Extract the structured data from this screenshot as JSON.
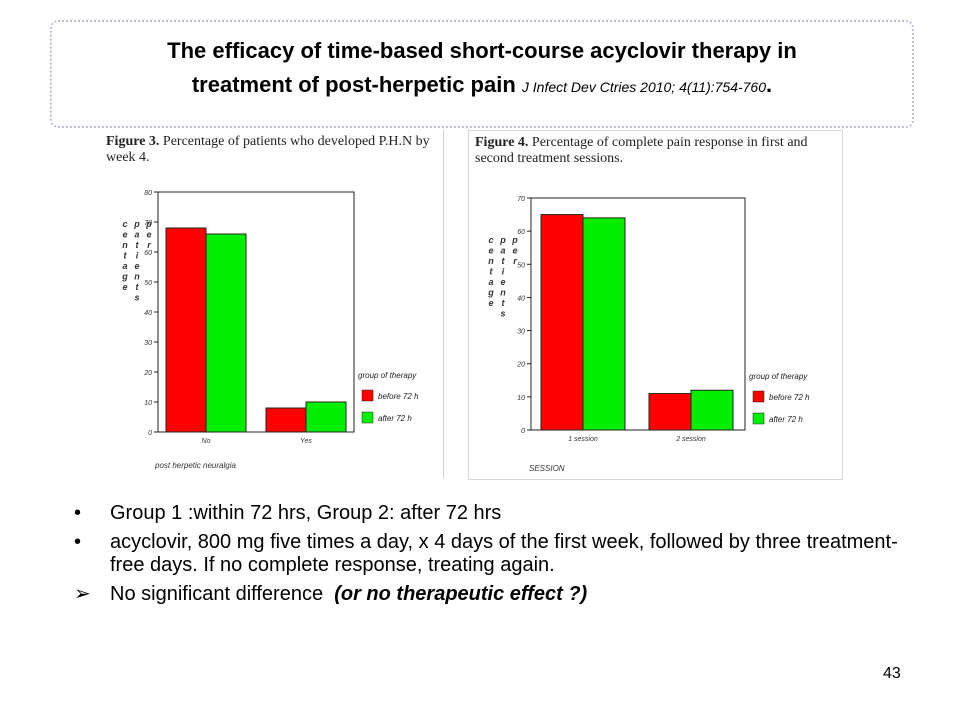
{
  "slide": {
    "title_line1": "The efficacy of time-based short-course acyclovir therapy in",
    "title_line2": "treatment of post-herpetic pain",
    "citation": "J Infect Dev Ctries 2010; 4(11):754-760",
    "title_end": ".",
    "page_number": "43"
  },
  "bullets": [
    {
      "marker": "•",
      "text": "Group 1 :within 72 hrs, Group 2: after 72 hrs"
    },
    {
      "marker": "•",
      "text": "acyclovir, 800 mg five times a day, x 4 days of the first week, followed by three treatment-free days.  If no complete response, treating again."
    },
    {
      "marker": "➢",
      "text": "No significant difference  ",
      "emphasis": "(or no therapeutic effect ?)"
    }
  ],
  "colors": {
    "before": "#ff0000",
    "after": "#00ee00"
  },
  "chart_data": [
    {
      "type": "bar",
      "caption_bold": "Figure 3.",
      "caption_text": " Percentage of patients who developed P.H.N by week 4.",
      "categories": [
        "No",
        "Yes"
      ],
      "series": [
        {
          "name": "before 72 h",
          "values": [
            68,
            8
          ]
        },
        {
          "name": "after 72 h",
          "values": [
            66,
            10
          ]
        }
      ],
      "ylim": [
        0,
        80
      ],
      "yticks": [
        0,
        10,
        20,
        30,
        40,
        50,
        60,
        70,
        80
      ],
      "ylabel": "centage patients per",
      "xlabel": "post herpetic neuralgia",
      "legend_title": "group of therapy",
      "legend_position": "right"
    },
    {
      "type": "bar",
      "caption_bold": "Figure 4.",
      "caption_text": " Percentage of complete pain response in first and second treatment sessions.",
      "categories": [
        "1 session",
        "2 session"
      ],
      "series": [
        {
          "name": "before 72 h",
          "values": [
            65,
            11
          ]
        },
        {
          "name": "after 72 h",
          "values": [
            64,
            12
          ]
        }
      ],
      "ylim": [
        0,
        70
      ],
      "yticks": [
        0,
        10,
        20,
        30,
        40,
        50,
        60,
        70
      ],
      "ylabel": "centage patients per",
      "xlabel": "SESSION",
      "legend_title": "group of therapy",
      "legend_position": "right"
    }
  ]
}
